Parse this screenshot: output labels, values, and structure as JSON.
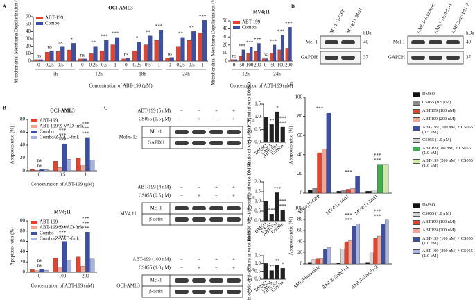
{
  "panel_labels": [
    "A",
    "B",
    "C",
    "D",
    "E"
  ],
  "chart_data": [
    {
      "type": "bar",
      "title": "OCI-AML3",
      "y_label": "Mitochondrial Membrane Depolarization (%)",
      "x_label": "Concentration of ABT-199 (μM)",
      "categories": [
        "0",
        "0.25",
        "0.5",
        "1",
        "0",
        "0.25",
        "0.5",
        "1",
        "0",
        "0.25",
        "0.5",
        "1",
        "0",
        "0.25",
        "0.5",
        "1"
      ],
      "groups": [
        "6h",
        "12h",
        "18h",
        "24h"
      ],
      "series": [
        {
          "name": "ABT-199",
          "color": "#e8412c",
          "values": [
            2,
            12,
            13,
            15,
            3,
            10,
            14,
            22,
            3,
            14,
            22,
            28,
            4,
            20,
            28,
            38
          ]
        },
        {
          "name": "Combo",
          "color": "#3b4fa8",
          "values": [
            2,
            14,
            20,
            24,
            3,
            20,
            28,
            32,
            4,
            26,
            34,
            42,
            5,
            32,
            40,
            55
          ]
        }
      ],
      "annotations": [
        "ns",
        "ns",
        "ns",
        "*",
        "ns",
        "**",
        "***",
        "***",
        "ns",
        "*",
        "**",
        "***",
        "ns",
        "**",
        "**",
        "***"
      ],
      "ylim": [
        0,
        60
      ],
      "yticks": [
        0,
        10,
        20,
        30,
        40,
        50,
        60
      ],
      "legend": "upper left"
    },
    {
      "type": "bar",
      "title": "MV4;11",
      "y_label": "Mitochondrial Membrane Depolarization (%)",
      "x_label": "Concentration of ABT-199 (nM)",
      "categories": [
        "0",
        "50",
        "100",
        "200",
        "0",
        "50",
        "100",
        "200"
      ],
      "groups": [
        "12h",
        "24h"
      ],
      "series": [
        {
          "name": "ABT-199",
          "color": "#e8412c",
          "values": [
            2,
            6,
            10,
            12,
            3,
            10,
            14,
            16
          ]
        },
        {
          "name": "Combo",
          "color": "#3b4fa8",
          "values": [
            2,
            14,
            18,
            22,
            3,
            20,
            32,
            42
          ]
        }
      ],
      "annotations": [
        "ns",
        "***",
        "***",
        "***",
        "ns",
        "***",
        "***",
        "***"
      ],
      "ylim": [
        0,
        50
      ],
      "yticks": [
        0,
        10,
        20,
        30,
        40,
        50
      ],
      "legend": "upper left"
    },
    {
      "type": "bar",
      "title": "OCI-AML3",
      "y_label": "Apoptosis ratio (%)",
      "x_label": "Concentration of ABT-199 (μM)",
      "categories": [
        "0",
        "0.5",
        "1"
      ],
      "series": [
        {
          "name": "ABT-199",
          "color": "#e8412c",
          "values": [
            2,
            15,
            20
          ]
        },
        {
          "name": "ABT-199/Z-VAD-fmk",
          "color": "#f4a490",
          "values": [
            1,
            5,
            8
          ]
        },
        {
          "name": "Combo",
          "color": "#3b4fa8",
          "values": [
            3,
            42,
            52
          ]
        },
        {
          "name": "Combo/Z-VAD-fmk",
          "color": "#a7b3e0",
          "values": [
            2,
            18,
            17
          ]
        }
      ],
      "annotations": [
        [
          "ns",
          "ns"
        ],
        [
          "***",
          "***",
          "***"
        ],
        [
          "***",
          "***",
          "***"
        ]
      ],
      "ylim": [
        0,
        80
      ],
      "yticks": [
        0,
        20,
        40,
        60,
        80
      ],
      "legend": "upper left"
    },
    {
      "type": "bar",
      "title": "MV4;11",
      "y_label": "Apoptosis ratio (%)",
      "x_label": "Concentration of ABT-199 (nM)",
      "categories": [
        "0",
        "100",
        "200"
      ],
      "series": [
        {
          "name": "ABT-199",
          "color": "#e8412c",
          "values": [
            5,
            28,
            30
          ]
        },
        {
          "name": "ABT-199/Z-VAD-fmk",
          "color": "#f4a490",
          "values": [
            3,
            10,
            12
          ]
        },
        {
          "name": "Combo",
          "color": "#3b4fa8",
          "values": [
            6,
            60,
            78
          ]
        },
        {
          "name": "Combo/Z-VAD-fmk",
          "color": "#a7b3e0",
          "values": [
            4,
            22,
            26
          ]
        }
      ],
      "annotations": [
        [
          "ns",
          "ns"
        ],
        [
          "***",
          "***",
          "***"
        ],
        [
          "***",
          "***",
          "***"
        ]
      ],
      "ylim": [
        0,
        100
      ],
      "yticks": [
        0,
        20,
        40,
        60,
        80,
        100
      ],
      "legend": "upper left"
    },
    {
      "type": "bar",
      "y_label": "Ratio of Mcl-1/GAPDH relative to DMSO",
      "categories": [
        "DMSO",
        "CS055",
        "ABT-199",
        "Combo"
      ],
      "values": [
        1,
        0.7,
        1.2,
        0.6
      ],
      "color": "#222222",
      "annotations": [
        [],
        [
          "**"
        ],
        [
          "*"
        ],
        [
          "***",
          "***"
        ]
      ],
      "ylim": [
        0,
        1.5
      ],
      "yticks": [
        {
          "value": 0,
          "label": "0.0"
        },
        0.5,
        {
          "value": 1,
          "label": "1.0"
        },
        1.5
      ]
    },
    {
      "type": "bar",
      "y_label": "Ratio of Mcl-1/β-actin relative to DMSO",
      "categories": [
        "DMSO",
        "CS055",
        "ABT-199",
        "Combo"
      ],
      "values": [
        1,
        0.35,
        1.45,
        0.55
      ],
      "color": "#222222",
      "annotations": [
        [],
        [
          "***"
        ],
        [
          "***"
        ],
        [
          "***",
          "***"
        ]
      ],
      "ylim": [
        0,
        2
      ],
      "yticks": [
        {
          "value": 0,
          "label": "0.0"
        },
        0.5,
        {
          "value": 1,
          "label": "1.0"
        },
        1.5,
        {
          "value": 2,
          "label": "2.0"
        }
      ]
    },
    {
      "type": "bar",
      "y_label": "Ratio of Mcl-1/β-actin relative to DMSO",
      "categories": [
        "DMSO",
        "CS055",
        "ABT-199",
        "Combo"
      ],
      "values": [
        1,
        0.55,
        0.9,
        0.7
      ],
      "color": "#222222",
      "annotations": [
        [],
        [
          "**"
        ],
        [
          "**"
        ],
        [
          "*"
        ]
      ],
      "ylim": [
        0,
        1.5
      ],
      "yticks": [
        {
          "value": 0,
          "label": "0.0"
        },
        0.5,
        {
          "value": 1,
          "label": "1.0"
        },
        1.5
      ]
    },
    {
      "type": "bar",
      "y_label": "Apoptosis ratio (%)",
      "categories": [
        "MV4;11-GFP",
        "MV4;11-Mcl1",
        "MV4;11-Mcl1"
      ],
      "series": [
        {
          "name": "DMSO",
          "color": "#111111",
          "values": [
            3,
            2,
            2
          ]
        },
        {
          "name": "CS055 (0.5 μM)",
          "color": "#8c8c8c",
          "values": [
            5,
            3,
            null
          ]
        },
        {
          "name": "ABT199 (100 nM)",
          "color": "#e8412c",
          "values": [
            42,
            4,
            null
          ]
        },
        {
          "name": "ABT199 (200 nM)",
          "color": "#f4a490",
          "values": [
            46,
            5,
            null
          ]
        },
        {
          "name": "ABT-199 (100 nM) + CS055 (0.5 μM)",
          "color": "#3b4fa8",
          "values": [
            84,
            18,
            null
          ]
        },
        {
          "name": "CS055 (1.0 μM)",
          "color": "#d4d4d4",
          "values": [
            null,
            null,
            3
          ]
        },
        {
          "name": "ABT199(100 nM) + CS055 (1.0 μM)",
          "color": "#3db04b",
          "values": [
            null,
            null,
            30
          ]
        },
        {
          "name": "ABT-199 (200 nM) + CS055 (1.0 μM)",
          "color": "#cfe8a8",
          "values": [
            null,
            null,
            30
          ]
        }
      ],
      "annotations": [
        [
          "***"
        ],
        [
          "***"
        ],
        [
          "***",
          "***"
        ]
      ],
      "ylim": [
        0,
        100
      ],
      "yticks": [
        0,
        20,
        40,
        60,
        80,
        100
      ],
      "legend": "right"
    },
    {
      "type": "bar",
      "y_label": "Apoptosis ratio (%)",
      "categories": [
        "AML3-Scramble",
        "AML3-shMcl1-1",
        "AML3-shMcl1-2"
      ],
      "series": [
        {
          "name": "DMSO",
          "color": "#111111",
          "values": [
            3,
            2,
            3
          ]
        },
        {
          "name": "CS055 (1.0 μM)",
          "color": "#d4d4d4",
          "values": [
            8,
            27,
            20
          ]
        },
        {
          "name": "ABT199 (100 nM)",
          "color": "#e8412c",
          "values": [
            9,
            40,
            46
          ]
        },
        {
          "name": "ABT199 (200 nM)",
          "color": "#f4a490",
          "values": [
            10,
            42,
            50
          ]
        },
        {
          "name": "ABT-199 (100 nM) + CS055 (1.0 μM)",
          "color": "#3b4fa8",
          "values": [
            27,
            68,
            72
          ]
        },
        {
          "name": "ABT-199 (200 nM) + CS055 (1.0 μM)",
          "color": "#a7b3e0",
          "values": [
            30,
            72,
            79
          ]
        }
      ],
      "annotations": [
        [],
        [
          "***",
          "***"
        ],
        [
          "***",
          "***"
        ]
      ],
      "ylim": [
        0,
        100
      ],
      "yticks": [
        0,
        20,
        40,
        60,
        80,
        100
      ],
      "legend": "right"
    }
  ],
  "blots": [
    {
      "cell_line": "Molm-13",
      "unit": "kDa",
      "conditions": [
        {
          "label": "ABT-199 (5 nM)",
          "signs": [
            "−",
            "−",
            "+",
            "+"
          ]
        },
        {
          "label": "CS055 (0.5 μM)",
          "signs": [
            "−",
            "+",
            "−",
            "+"
          ]
        }
      ],
      "bands": [
        {
          "name": "Mcl-1",
          "kda": 40
        },
        {
          "name": "GAPDH",
          "kda": 37
        }
      ]
    },
    {
      "cell_line": "MV4;11",
      "unit": "kDa",
      "conditions": [
        {
          "label": "ABT-199 (4 nM)",
          "signs": [
            "−",
            "−",
            "+",
            "+"
          ]
        },
        {
          "label": "CS055 (0.5 μM)",
          "signs": [
            "−",
            "+",
            "−",
            "+"
          ]
        }
      ],
      "bands": [
        {
          "name": "Mcl-1",
          "kda": 40
        },
        {
          "name": "β-actin",
          "kda": 40
        }
      ]
    },
    {
      "cell_line": "OCI-AML3",
      "unit": "kDa",
      "conditions": [
        {
          "label": "ABT-199 (100 nM)",
          "signs": [
            "−",
            "−",
            "+",
            "+"
          ]
        },
        {
          "label": "CS055 (1.0 μM)",
          "signs": [
            "−",
            "+",
            "−",
            "+"
          ]
        }
      ],
      "bands": [
        {
          "name": "Mcl-1",
          "kda": 40
        },
        {
          "name": "β-actin",
          "kda": 40
        }
      ]
    },
    {
      "unit": "kDa",
      "lanes": [
        "MV4;11-GFP",
        "MV4;11-Mcl1"
      ],
      "bands": [
        {
          "name": "Mcl-1",
          "kda": 40
        },
        {
          "name": "GAPDH",
          "kda": 37
        }
      ]
    },
    {
      "unit": "kDa",
      "lanes": [
        "AML3-Scramble",
        "AML3-shMcl1-1",
        "AML3-shMcl1-2"
      ],
      "bands": [
        {
          "name": "Mcl-1",
          "kda": 40
        },
        {
          "name": "GAPDH",
          "kda": 37
        }
      ]
    }
  ]
}
